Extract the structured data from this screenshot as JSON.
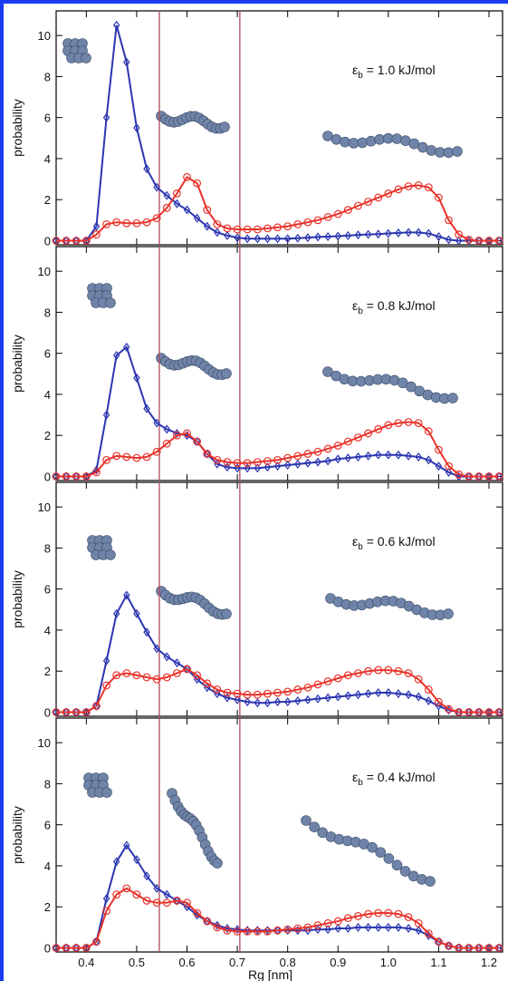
{
  "chart_data": [
    {
      "type": "line",
      "ylabel": "probability",
      "annotation_symbol": "ε",
      "annotation_subscript": "b",
      "annotation_text": " = 1.0 kJ/mol",
      "x": [
        0.34,
        0.36,
        0.38,
        0.4,
        0.42,
        0.44,
        0.46,
        0.48,
        0.5,
        0.52,
        0.54,
        0.56,
        0.58,
        0.6,
        0.62,
        0.64,
        0.66,
        0.68,
        0.7,
        0.72,
        0.74,
        0.76,
        0.78,
        0.8,
        0.82,
        0.84,
        0.86,
        0.88,
        0.9,
        0.92,
        0.94,
        0.96,
        0.98,
        1.0,
        1.02,
        1.04,
        1.06,
        1.08,
        1.1,
        1.12,
        1.14,
        1.16,
        1.18,
        1.2,
        1.22
      ],
      "series": [
        {
          "color": "#2b35b0",
          "marker": "diamond",
          "values": [
            0,
            0,
            0,
            0,
            0.7,
            6,
            10.5,
            8.7,
            5.5,
            3.5,
            2.6,
            2.2,
            1.8,
            1.5,
            1.1,
            0.7,
            0.4,
            0.25,
            0.15,
            0.1,
            0.1,
            0.1,
            0.1,
            0.1,
            0.12,
            0.15,
            0.18,
            0.2,
            0.22,
            0.25,
            0.28,
            0.3,
            0.32,
            0.35,
            0.38,
            0.4,
            0.4,
            0.35,
            0.2,
            0.05,
            0,
            0,
            0,
            0,
            0
          ]
        },
        {
          "color": "#e8322a",
          "marker": "circle",
          "values": [
            0,
            0,
            0,
            0,
            0.3,
            0.8,
            0.9,
            0.85,
            0.85,
            0.9,
            1.1,
            1.6,
            2.3,
            3.1,
            2.8,
            1.5,
            0.8,
            0.6,
            0.55,
            0.55,
            0.55,
            0.6,
            0.65,
            0.7,
            0.8,
            0.9,
            1.0,
            1.15,
            1.3,
            1.5,
            1.7,
            1.9,
            2.1,
            2.3,
            2.5,
            2.65,
            2.7,
            2.6,
            2.1,
            1.0,
            0.3,
            0.05,
            0,
            0,
            0
          ]
        }
      ],
      "xlim": [
        0.34,
        1.227
      ],
      "ylim": [
        -0.2,
        11.2
      ],
      "yticks": [
        0,
        2,
        4,
        6,
        8,
        10
      ],
      "xticks": [
        0.4,
        0.5,
        0.6,
        0.7,
        0.8,
        0.9,
        {
          "value": 1,
          "label": "1.0"
        },
        1.1,
        1.2
      ],
      "show_xtick_labels": false,
      "vlines": [
        0.545,
        0.705
      ]
    },
    {
      "type": "line",
      "ylabel": "probability",
      "annotation_symbol": "ε",
      "annotation_subscript": "b",
      "annotation_text": " = 0.8 kJ/mol",
      "x": [
        0.34,
        0.36,
        0.38,
        0.4,
        0.42,
        0.44,
        0.46,
        0.48,
        0.5,
        0.52,
        0.54,
        0.56,
        0.58,
        0.6,
        0.62,
        0.64,
        0.66,
        0.68,
        0.7,
        0.72,
        0.74,
        0.76,
        0.78,
        0.8,
        0.82,
        0.84,
        0.86,
        0.88,
        0.9,
        0.92,
        0.94,
        0.96,
        0.98,
        1.0,
        1.02,
        1.04,
        1.06,
        1.08,
        1.1,
        1.12,
        1.14,
        1.16,
        1.18,
        1.2,
        1.22
      ],
      "series": [
        {
          "color": "#2b35b0",
          "marker": "diamond",
          "values": [
            0,
            0,
            0,
            0,
            0.3,
            3,
            5.9,
            6.3,
            4.8,
            3.3,
            2.6,
            2.3,
            2.1,
            2.0,
            1.7,
            1.1,
            0.6,
            0.45,
            0.4,
            0.4,
            0.4,
            0.45,
            0.5,
            0.55,
            0.6,
            0.65,
            0.7,
            0.75,
            0.85,
            0.9,
            0.95,
            1.0,
            1.05,
            1.05,
            1.05,
            1.0,
            0.95,
            0.8,
            0.5,
            0.2,
            0,
            0,
            0,
            0,
            0
          ]
        },
        {
          "color": "#e8322a",
          "marker": "circle",
          "values": [
            0,
            0,
            0,
            0,
            0.2,
            0.8,
            1.0,
            0.95,
            0.9,
            0.95,
            1.2,
            1.6,
            2.0,
            2.1,
            1.7,
            1.1,
            0.8,
            0.7,
            0.65,
            0.65,
            0.7,
            0.75,
            0.8,
            0.9,
            1.0,
            1.1,
            1.2,
            1.35,
            1.5,
            1.7,
            1.9,
            2.1,
            2.3,
            2.5,
            2.6,
            2.65,
            2.6,
            2.2,
            1.3,
            0.5,
            0.1,
            0,
            0,
            0,
            0
          ]
        }
      ],
      "xlim": [
        0.34,
        1.227
      ],
      "ylim": [
        -0.2,
        11.2
      ],
      "yticks": [
        0,
        2,
        4,
        6,
        8,
        10
      ],
      "xticks": [
        0.4,
        0.5,
        0.6,
        0.7,
        0.8,
        0.9,
        {
          "value": 1,
          "label": "1.0"
        },
        1.1,
        1.2
      ],
      "show_xtick_labels": false,
      "vlines": [
        0.545,
        0.705
      ]
    },
    {
      "type": "line",
      "ylabel": "probability",
      "annotation_symbol": "ε",
      "annotation_subscript": "b",
      "annotation_text": " = 0.6 kJ/mol",
      "x": [
        0.34,
        0.36,
        0.38,
        0.4,
        0.42,
        0.44,
        0.46,
        0.48,
        0.5,
        0.52,
        0.54,
        0.56,
        0.58,
        0.6,
        0.62,
        0.64,
        0.66,
        0.68,
        0.7,
        0.72,
        0.74,
        0.76,
        0.78,
        0.8,
        0.82,
        0.84,
        0.86,
        0.88,
        0.9,
        0.92,
        0.94,
        0.96,
        0.98,
        1.0,
        1.02,
        1.04,
        1.06,
        1.08,
        1.1,
        1.12,
        1.14,
        1.16,
        1.18,
        1.2,
        1.22
      ],
      "series": [
        {
          "color": "#2b35b0",
          "marker": "diamond",
          "values": [
            0,
            0,
            0,
            0,
            0.3,
            2.5,
            4.8,
            5.7,
            4.8,
            3.9,
            3.1,
            2.7,
            2.4,
            2.1,
            1.6,
            1.2,
            0.9,
            0.7,
            0.6,
            0.5,
            0.45,
            0.45,
            0.5,
            0.5,
            0.55,
            0.6,
            0.65,
            0.7,
            0.75,
            0.8,
            0.85,
            0.9,
            0.95,
            0.95,
            0.9,
            0.85,
            0.75,
            0.55,
            0.3,
            0.1,
            0,
            0,
            0,
            0,
            0
          ]
        },
        {
          "color": "#e8322a",
          "marker": "circle",
          "values": [
            0,
            0,
            0,
            0,
            0.3,
            1.3,
            1.8,
            1.9,
            1.8,
            1.7,
            1.6,
            1.7,
            1.9,
            2.1,
            1.8,
            1.4,
            1.1,
            0.95,
            0.9,
            0.85,
            0.85,
            0.9,
            0.95,
            1.0,
            1.1,
            1.2,
            1.35,
            1.5,
            1.65,
            1.8,
            1.9,
            2.0,
            2.05,
            2.05,
            2.0,
            1.9,
            1.6,
            1.1,
            0.5,
            0.15,
            0,
            0,
            0,
            0,
            0
          ]
        }
      ],
      "xlim": [
        0.34,
        1.227
      ],
      "ylim": [
        -0.2,
        11.2
      ],
      "yticks": [
        0,
        2,
        4,
        6,
        8,
        10
      ],
      "xticks": [
        0.4,
        0.5,
        0.6,
        0.7,
        0.8,
        0.9,
        {
          "value": 1,
          "label": "1.0"
        },
        1.1,
        1.2
      ],
      "show_xtick_labels": false,
      "vlines": [
        0.545,
        0.705
      ]
    },
    {
      "type": "line",
      "ylabel": "probability",
      "xlabel": "Rg [nm]",
      "annotation_symbol": "ε",
      "annotation_subscript": "b",
      "annotation_text": " = 0.4 kJ/mol",
      "x": [
        0.34,
        0.36,
        0.38,
        0.4,
        0.42,
        0.44,
        0.46,
        0.48,
        0.5,
        0.52,
        0.54,
        0.56,
        0.58,
        0.6,
        0.62,
        0.64,
        0.66,
        0.68,
        0.7,
        0.72,
        0.74,
        0.76,
        0.78,
        0.8,
        0.82,
        0.84,
        0.86,
        0.88,
        0.9,
        0.92,
        0.94,
        0.96,
        0.98,
        1.0,
        1.02,
        1.04,
        1.06,
        1.08,
        1.1,
        1.12,
        1.14,
        1.16,
        1.18,
        1.2,
        1.22
      ],
      "series": [
        {
          "color": "#2b35b0",
          "marker": "diamond",
          "values": [
            0,
            0,
            0,
            0,
            0.3,
            2.4,
            4.2,
            5.0,
            4.3,
            3.5,
            2.9,
            2.6,
            2.3,
            2.0,
            1.6,
            1.3,
            1.1,
            0.95,
            0.9,
            0.85,
            0.85,
            0.85,
            0.85,
            0.85,
            0.85,
            0.85,
            0.9,
            0.9,
            0.95,
            0.95,
            1.0,
            1.0,
            1.0,
            1.0,
            1.0,
            0.95,
            0.85,
            0.6,
            0.3,
            0.1,
            0,
            0,
            0,
            0,
            0
          ]
        },
        {
          "color": "#e8322a",
          "marker": "circle",
          "values": [
            0,
            0,
            0,
            0,
            0.3,
            1.8,
            2.6,
            2.9,
            2.6,
            2.3,
            2.2,
            2.2,
            2.3,
            2.2,
            1.7,
            1.3,
            1.0,
            0.85,
            0.8,
            0.8,
            0.8,
            0.8,
            0.85,
            0.9,
            0.95,
            1.0,
            1.1,
            1.2,
            1.3,
            1.45,
            1.55,
            1.65,
            1.7,
            1.7,
            1.65,
            1.5,
            1.2,
            0.7,
            0.3,
            0.1,
            0,
            0,
            0,
            0,
            0
          ]
        }
      ],
      "xlim": [
        0.34,
        1.227
      ],
      "ylim": [
        -0.2,
        11.2
      ],
      "yticks": [
        0,
        2,
        4,
        6,
        8,
        10
      ],
      "xticks": [
        0.4,
        0.5,
        0.6,
        0.7,
        0.8,
        0.9,
        {
          "value": 1,
          "label": "1.0"
        },
        1.1,
        1.2
      ],
      "show_xtick_labels": true,
      "vlines": [
        0.545,
        0.705
      ]
    }
  ]
}
